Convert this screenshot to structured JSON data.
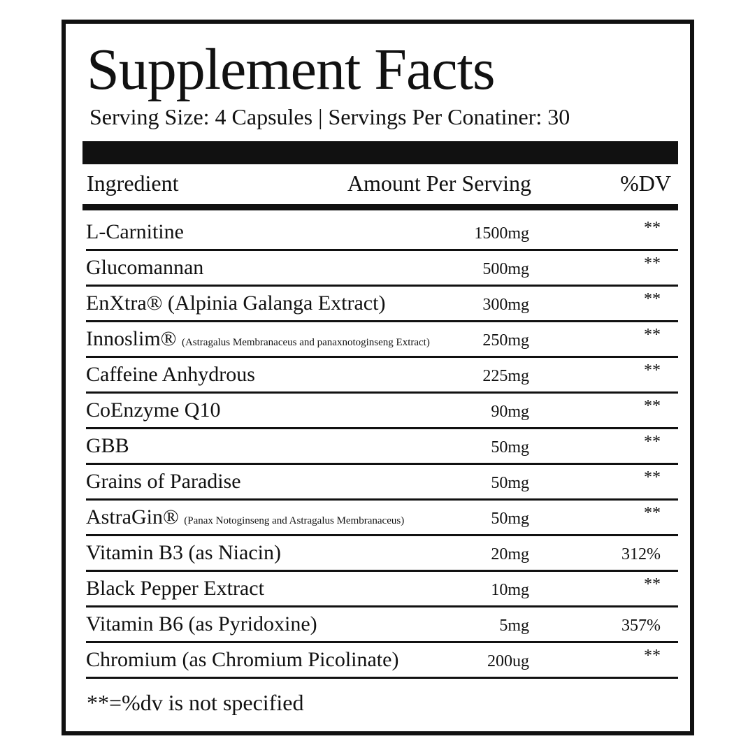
{
  "header": {
    "title": "Supplement Facts",
    "serving": "Serving Size: 4 Capsules | Servings Per Conatiner: 30"
  },
  "table": {
    "columns": [
      "Ingredient",
      "Amount Per Serving",
      "%DV"
    ],
    "rows": [
      {
        "name": "L-Carnitine",
        "amount": "1500mg",
        "dv": "**"
      },
      {
        "name": "Glucomannan",
        "amount": "500mg",
        "dv": "**"
      },
      {
        "name": "EnXtra® (Alpinia Galanga Extract)",
        "amount": "300mg",
        "dv": "**"
      },
      {
        "name": "Innoslim®",
        "note": "(Astragalus Membranaceus and panaxnotoginseng Extract)",
        "amount": "250mg",
        "dv": "**"
      },
      {
        "name": "Caffeine Anhydrous",
        "amount": "225mg",
        "dv": "**"
      },
      {
        "name": "CoEnzyme Q10",
        "amount": "90mg",
        "dv": "**"
      },
      {
        "name": "GBB",
        "amount": "50mg",
        "dv": "**"
      },
      {
        "name": "Grains of Paradise",
        "amount": "50mg",
        "dv": "**"
      },
      {
        "name": "AstraGin®",
        "note": "(Panax Notoginseng and Astragalus Membranaceus)",
        "amount": "50mg",
        "dv": "**"
      },
      {
        "name": "Vitamin B3 (as Niacin)",
        "amount": "20mg",
        "dv": "312%"
      },
      {
        "name": "Black Pepper Extract",
        "amount": "10mg",
        "dv": "**"
      },
      {
        "name": "Vitamin B6 (as Pyridoxine)",
        "amount": "5mg",
        "dv": "357%"
      },
      {
        "name": "Chromium (as Chromium Picolinate)",
        "amount": "200ug",
        "dv": "**"
      }
    ]
  },
  "footnote": "**=%dv is not specified"
}
